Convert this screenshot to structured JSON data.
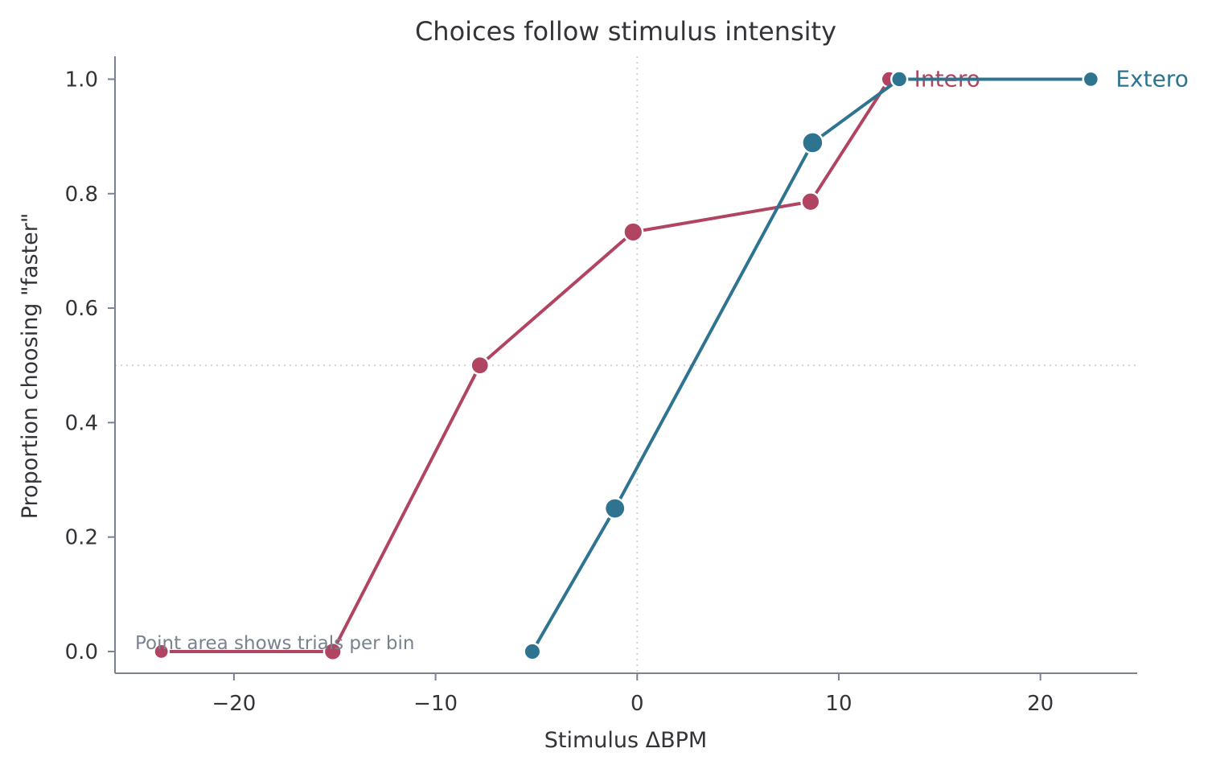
{
  "chart_data": {
    "type": "line",
    "title": "Choices follow stimulus intensity",
    "xlabel": "Stimulus ΔBPM",
    "ylabel": "Proportion choosing \"faster\"",
    "xlim": [
      -25.9,
      24.8
    ],
    "ylim": [
      -0.038,
      1.04
    ],
    "x_ticks": [
      -20,
      -10,
      0,
      10,
      20
    ],
    "x_tick_labels": [
      "−20",
      "−10",
      "0",
      "10",
      "20"
    ],
    "y_ticks": [
      0.0,
      0.2,
      0.4,
      0.6,
      0.8,
      1.0
    ],
    "y_tick_labels": [
      "0.0",
      "0.2",
      "0.4",
      "0.6",
      "0.8",
      "1.0"
    ],
    "grid": false,
    "legend": "direct labels at line ends",
    "reference_lines": {
      "x": 0,
      "y": 0.5
    },
    "annotation": "Point area shows trials per bin",
    "series": [
      {
        "name": "Intero",
        "color": "#b04461",
        "x": [
          -23.6,
          -15.1,
          -7.8,
          -0.2,
          8.6,
          12.5
        ],
        "y": [
          0.0,
          0.0,
          0.5,
          0.733,
          0.786,
          1.0
        ],
        "trials": [
          3,
          8,
          9,
          12,
          10,
          5
        ]
      },
      {
        "name": "Extero",
        "color": "#2e7491",
        "x": [
          -5.2,
          -1.1,
          8.7,
          13.0,
          22.5
        ],
        "y": [
          0.0,
          0.25,
          0.889,
          1.0,
          1.0
        ],
        "trials": [
          6,
          16,
          18,
          5,
          4
        ]
      }
    ]
  }
}
